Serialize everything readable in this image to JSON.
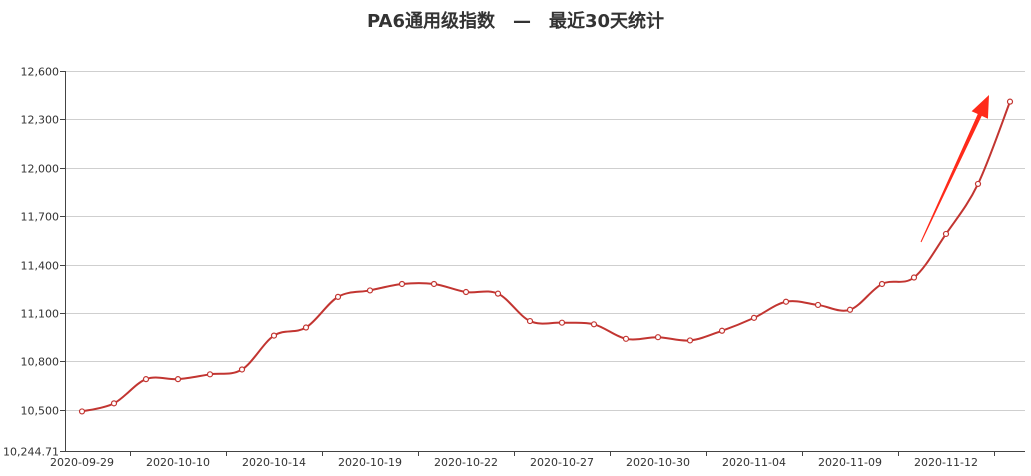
{
  "title": "PA6通用级指数　—　最近30天统计",
  "chart_data": {
    "type": "line",
    "title": "PA6通用级指数　—　最近30天统计",
    "xlabel": "",
    "ylabel": "",
    "ylim": [
      10244.71,
      12600
    ],
    "y_ticks": [
      "10,244.71",
      "10,500",
      "10,800",
      "11,100",
      "11,400",
      "11,700",
      "12,000",
      "12,300",
      "12,600"
    ],
    "y_tick_values": [
      10244.71,
      10500,
      10800,
      11100,
      11400,
      11700,
      12000,
      12300,
      12600
    ],
    "x_tick_labels": [
      "2020-09-29",
      "2020-10-10",
      "2020-10-14",
      "2020-10-19",
      "2020-10-22",
      "2020-10-27",
      "2020-10-30",
      "2020-11-04",
      "2020-11-09",
      "2020-11-12"
    ],
    "x_tick_positions": [
      0,
      3,
      6,
      9,
      12,
      15,
      18,
      21,
      24,
      27
    ],
    "grid": true,
    "series": [
      {
        "color": "#c23531",
        "values": [
          10490,
          10540,
          10690,
          10690,
          10720,
          10750,
          10960,
          11010,
          11200,
          11240,
          11280,
          11280,
          11230,
          11220,
          11050,
          11040,
          11030,
          10940,
          10950,
          10930,
          10990,
          11070,
          11170,
          11150,
          11120,
          11280,
          11320,
          11590,
          11900,
          12410
        ]
      }
    ],
    "annotation": {
      "type": "arrow",
      "color": "#ff2a1a",
      "direction": "up-right"
    }
  }
}
